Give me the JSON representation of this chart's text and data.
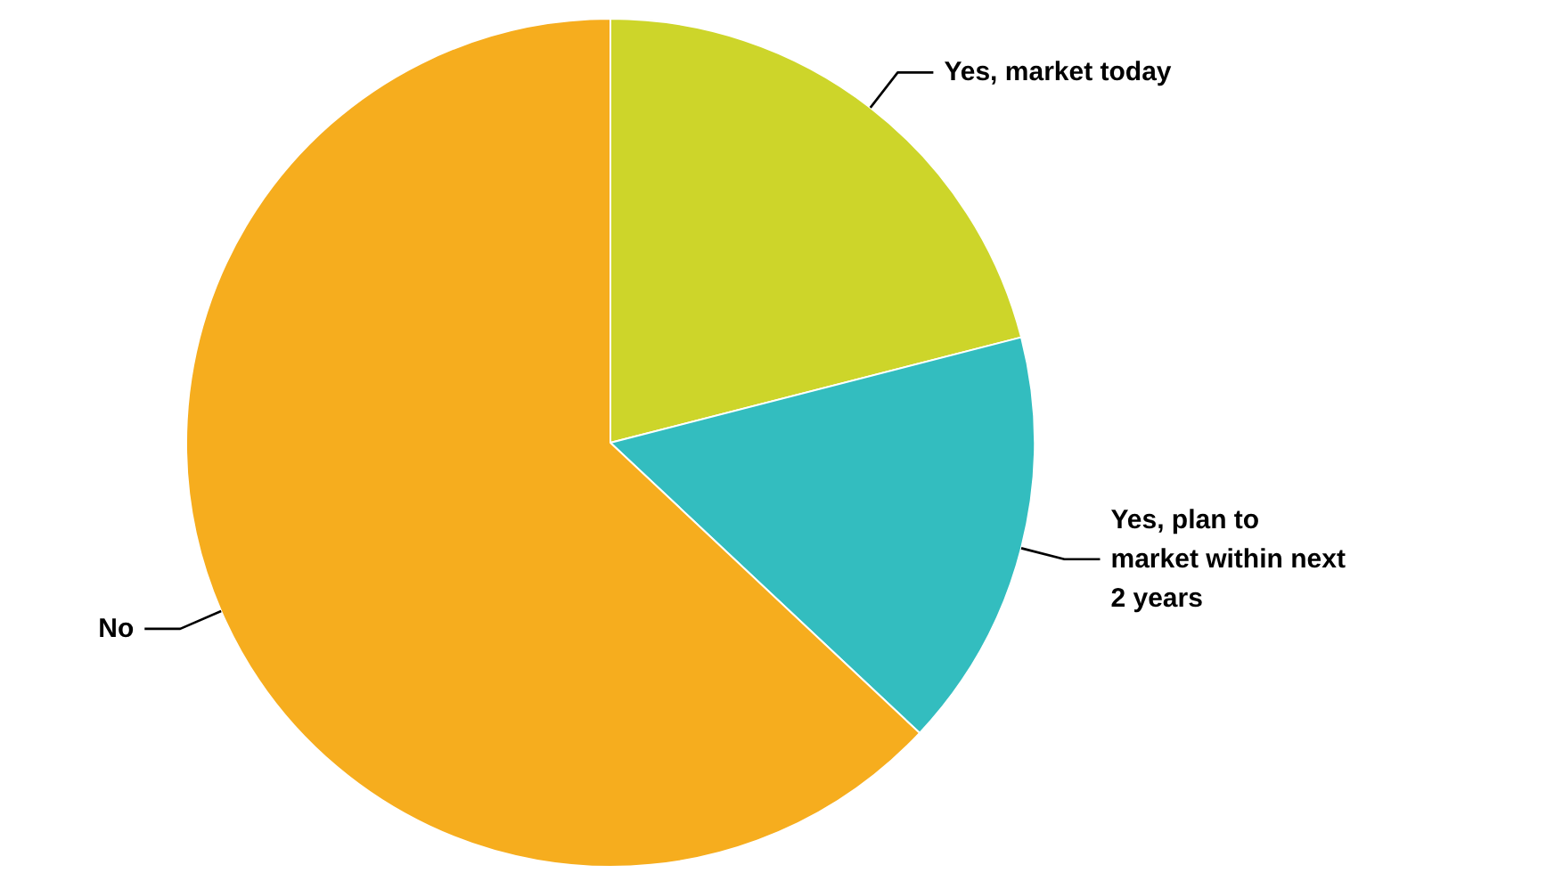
{
  "chart_data": {
    "type": "pie",
    "categories": [
      "Yes, market today",
      "Yes, plan to market within next 2 years",
      "No"
    ],
    "values": [
      21,
      16,
      63
    ],
    "colors": [
      "#cdd52a",
      "#33bdbf",
      "#f6ad1e"
    ]
  }
}
